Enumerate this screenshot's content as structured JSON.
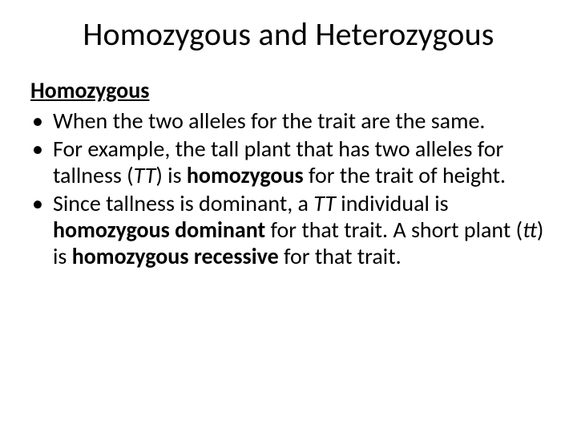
{
  "title": "Homozygous and Heterozygous",
  "subtitle": "Homozygous",
  "bullets": [
    {
      "segments": [
        {
          "text": "When the two alleles for the trait are the same."
        }
      ]
    },
    {
      "segments": [
        {
          "text": "For example, the tall plant that has two alleles for tallness ("
        },
        {
          "text": "TT",
          "italic": true
        },
        {
          "text": ") is "
        },
        {
          "text": "homozygous",
          "bold": true
        },
        {
          "text": " for the trait of height."
        }
      ]
    },
    {
      "segments": [
        {
          "text": "Since tallness is dominant, a "
        },
        {
          "text": "TT",
          "italic": true
        },
        {
          "text": " individual is "
        },
        {
          "text": "homozygous dominant",
          "bold": true
        },
        {
          "text": " for that trait. A short plant ("
        },
        {
          "text": "tt",
          "italic": true
        },
        {
          "text": ") is "
        },
        {
          "text": "homozygous recessive",
          "bold": true
        },
        {
          "text": " for that trait."
        }
      ]
    }
  ],
  "style": {
    "background_color": "#ffffff",
    "text_color": "#000000",
    "title_fontsize": 40,
    "body_fontsize": 28,
    "font_family": "Calibri"
  }
}
